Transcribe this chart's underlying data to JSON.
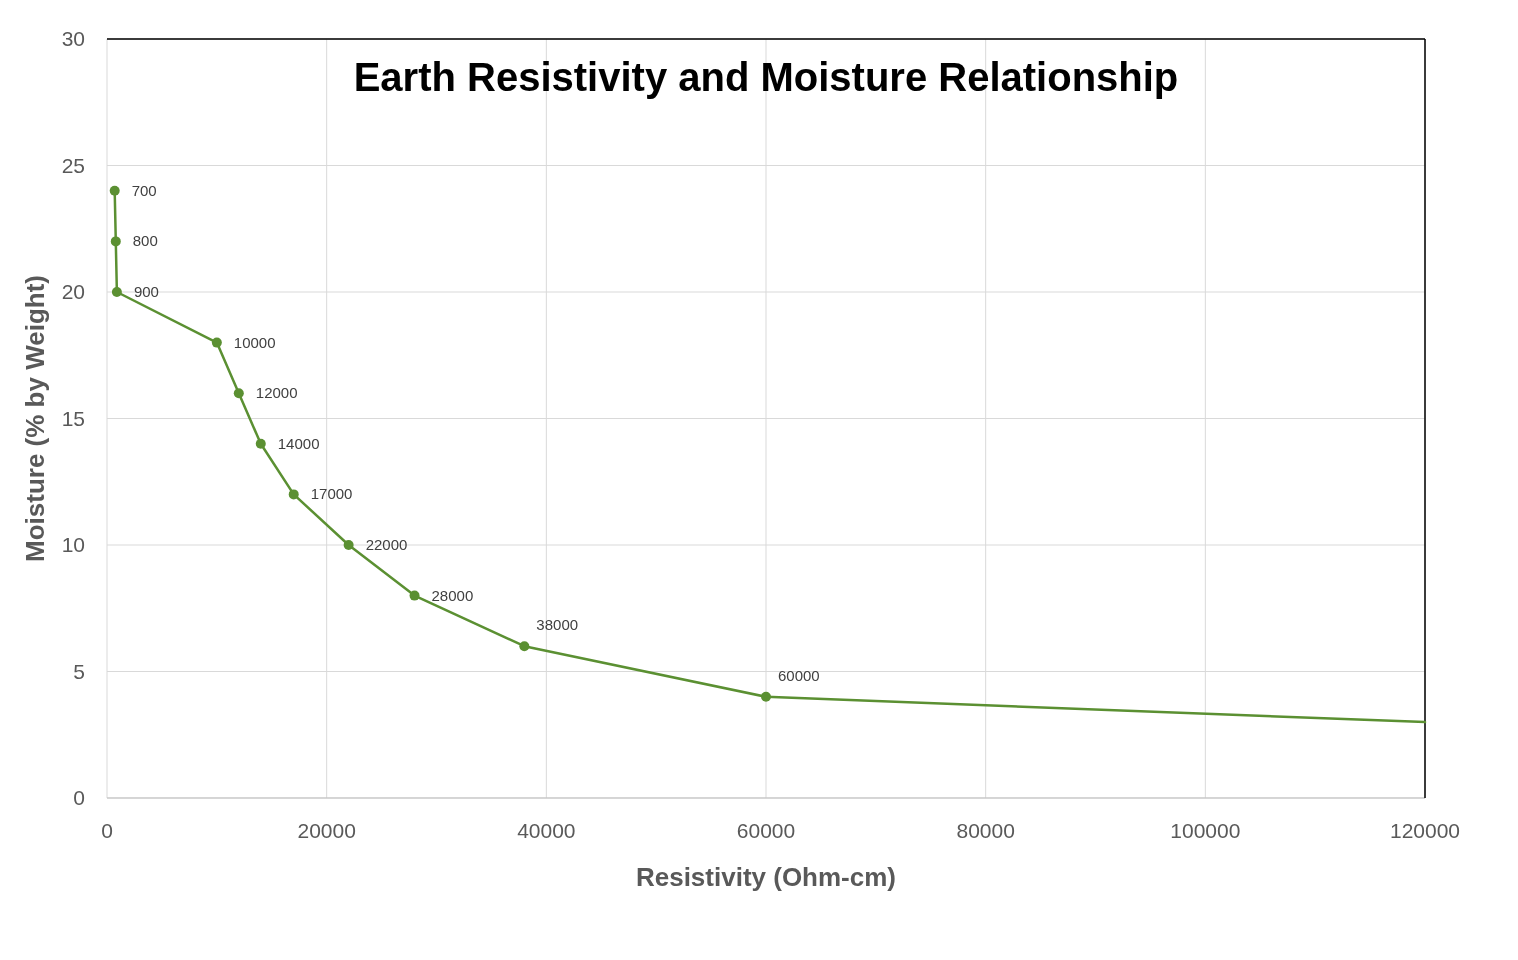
{
  "chart_data": {
    "type": "line",
    "title": "Earth Resistivity and Moisture Relationship",
    "xlabel": "Resistivity (Ohm-cm)",
    "ylabel": "Moisture (% by Weight)",
    "series": [
      {
        "color": "#5b9032",
        "x": [
          700,
          800,
          900,
          10000,
          12000,
          14000,
          17000,
          22000,
          28000,
          38000,
          60000
        ],
        "values": [
          24,
          22,
          20,
          18,
          16,
          14,
          12,
          10,
          8,
          6,
          4
        ],
        "marker": "circle"
      },
      {
        "color": "#5b9032",
        "x": [
          60000,
          120000
        ],
        "values": [
          4,
          3
        ],
        "marker": "none"
      }
    ],
    "annotations": [
      {
        "text": "700",
        "x": 700,
        "y": 24
      },
      {
        "text": "800",
        "x": 800,
        "y": 22
      },
      {
        "text": "900",
        "x": 900,
        "y": 20
      },
      {
        "text": "10000",
        "x": 10000,
        "y": 18
      },
      {
        "text": "12000",
        "x": 12000,
        "y": 16
      },
      {
        "text": "14000",
        "x": 14000,
        "y": 14
      },
      {
        "text": "17000",
        "x": 17000,
        "y": 12
      },
      {
        "text": "22000",
        "x": 22000,
        "y": 10
      },
      {
        "text": "28000",
        "x": 28000,
        "y": 8
      },
      {
        "text": "38000",
        "x": 38000,
        "y": 6
      },
      {
        "text": "60000",
        "x": 60000,
        "y": 4
      }
    ],
    "xlim": [
      0,
      120000
    ],
    "xticks": [
      0,
      20000,
      40000,
      60000,
      80000,
      100000,
      120000
    ],
    "ylim": [
      0,
      30
    ],
    "yticks": [
      0,
      5,
      10,
      15,
      20,
      25,
      30
    ],
    "grid": true
  }
}
